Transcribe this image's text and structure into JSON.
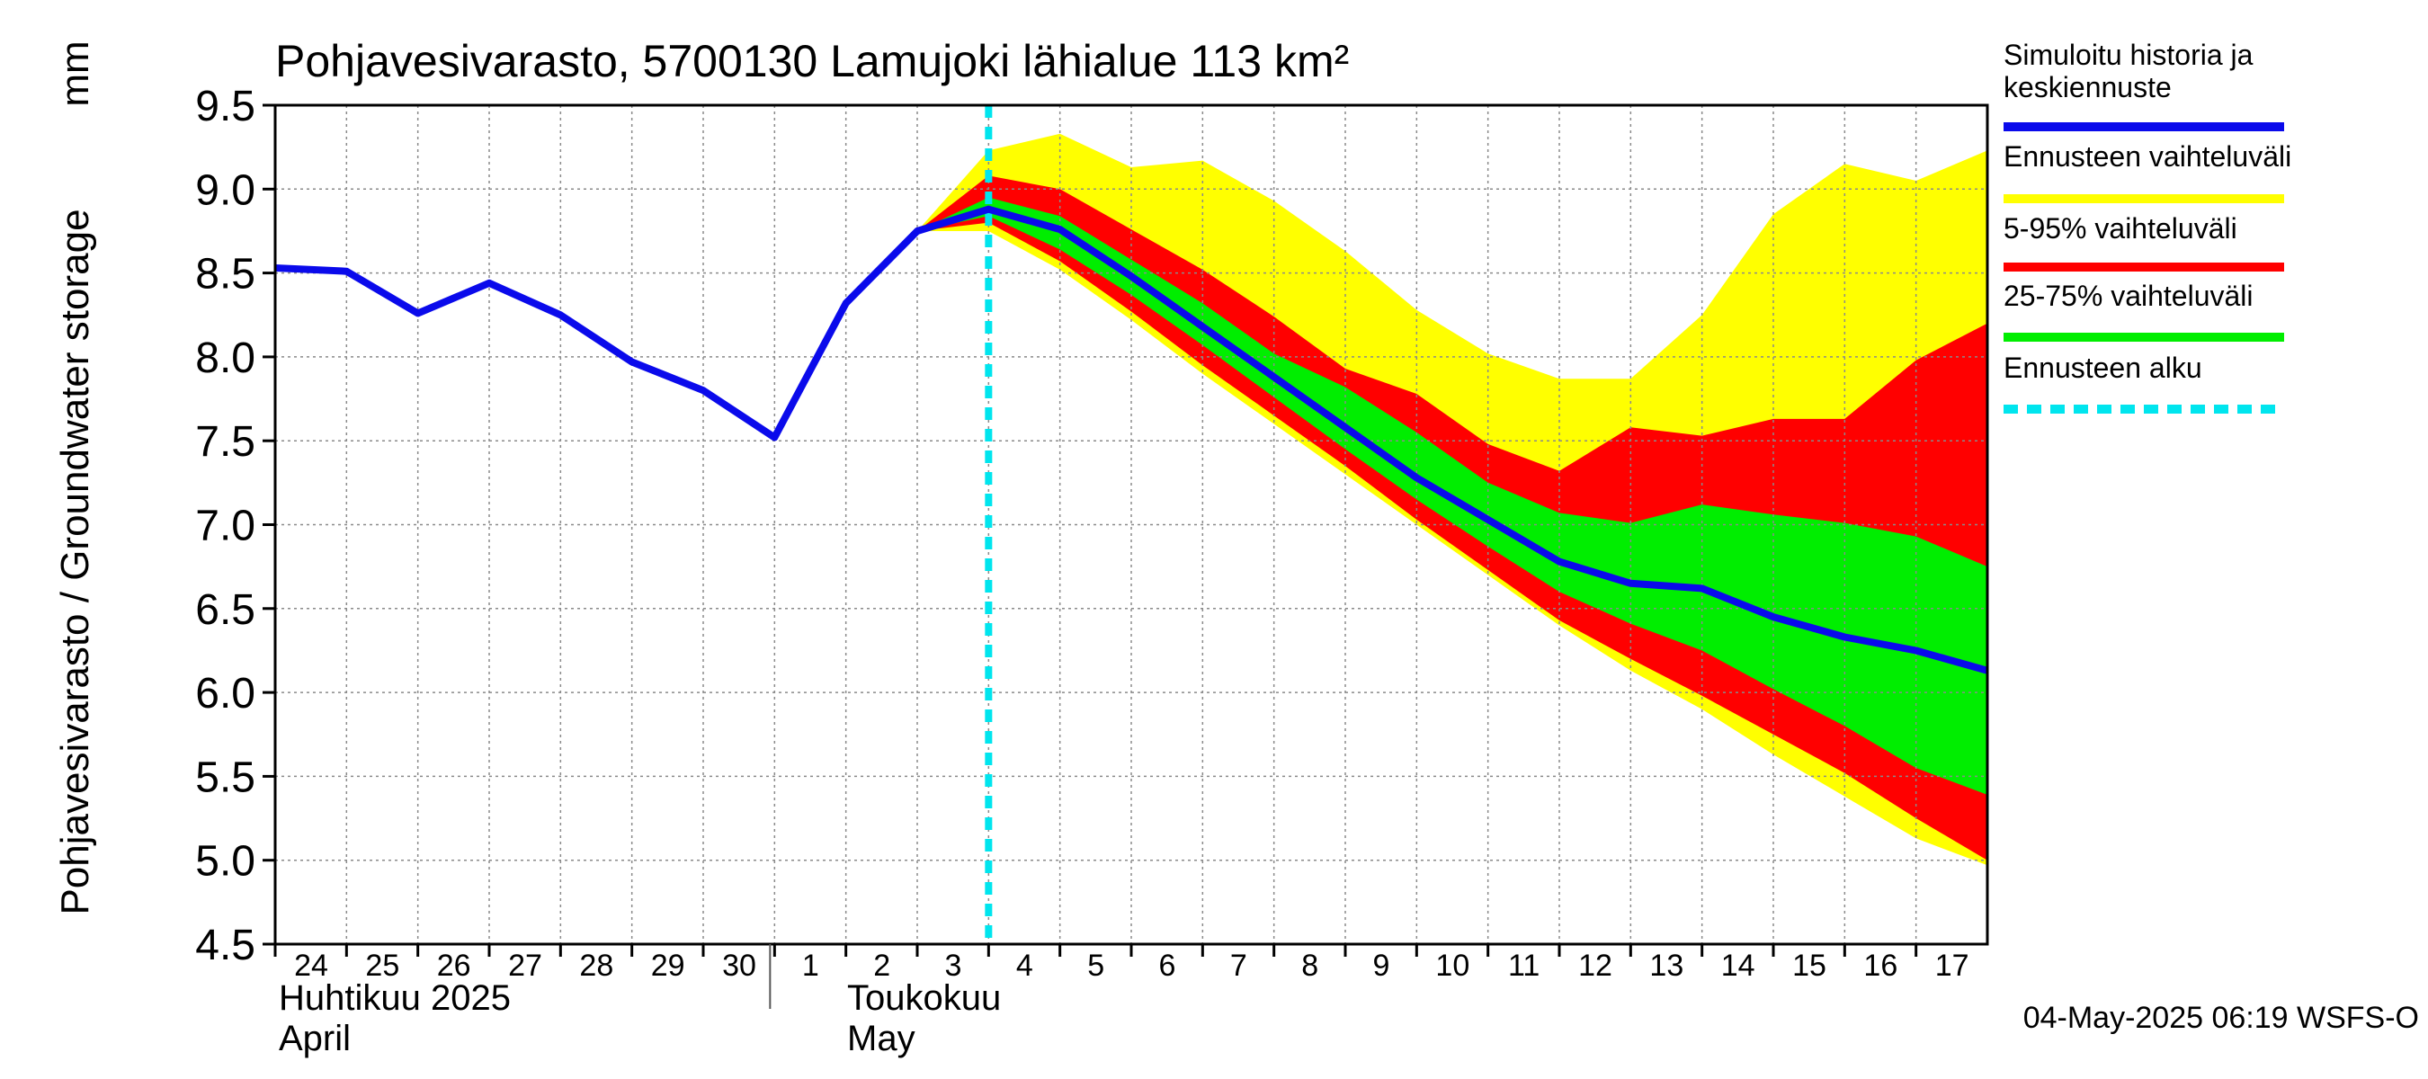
{
  "chart_data": {
    "type": "area",
    "title": "Pohjavesivarasto, 5700130 Lamujoki lähialue 113 km²",
    "ylabel": "Pohjavesivarasto / Groundwater storage",
    "yunit": "mm",
    "ylim": [
      4.5,
      9.5
    ],
    "yticks": [
      "4.5",
      "5.0",
      "5.5",
      "6.0",
      "6.5",
      "7.0",
      "7.5",
      "8.0",
      "8.5",
      "9.0",
      "9.5"
    ],
    "xlim": [
      0,
      24.0
    ],
    "xtick_labels": [
      "24",
      "25",
      "26",
      "27",
      "28",
      "29",
      "30",
      "1",
      "2",
      "3",
      "4",
      "5",
      "6",
      "7",
      "8",
      "9",
      "10",
      "11",
      "12",
      "13",
      "14",
      "15",
      "16",
      "17"
    ],
    "month_labels": {
      "april_fi": "Huhtikuu  2025",
      "april_en": "April",
      "may_fi": "Toukokuu",
      "may_en": "May"
    },
    "grid": true,
    "legend_position": "right",
    "forecast_start": 10.0,
    "history": {
      "x": [
        0,
        1,
        2,
        3,
        4,
        5,
        6,
        7,
        8,
        9,
        10
      ],
      "y": [
        8.53,
        8.51,
        8.26,
        8.44,
        8.25,
        7.97,
        7.8,
        7.52,
        8.32,
        8.75,
        8.88
      ]
    },
    "median": {
      "x": [
        10,
        11,
        12,
        13,
        14,
        15,
        16,
        17,
        18,
        19,
        20,
        21,
        22,
        23,
        24
      ],
      "y": [
        8.88,
        8.76,
        8.48,
        8.18,
        7.88,
        7.58,
        7.28,
        7.03,
        6.78,
        6.65,
        6.62,
        6.45,
        6.33,
        6.25,
        6.13
      ]
    },
    "band_minmax": {
      "x": [
        9,
        10,
        11,
        12,
        13,
        14,
        15,
        16,
        17,
        18,
        19,
        20,
        21,
        22,
        23,
        24
      ],
      "upper": [
        8.75,
        9.23,
        9.33,
        9.13,
        9.17,
        8.93,
        8.63,
        8.28,
        8.02,
        7.87,
        7.87,
        8.25,
        8.85,
        9.15,
        9.05,
        9.23
      ],
      "lower": [
        8.75,
        8.75,
        8.52,
        8.22,
        7.9,
        7.6,
        7.3,
        7.0,
        6.7,
        6.4,
        6.13,
        5.9,
        5.63,
        5.38,
        5.13,
        4.97
      ]
    },
    "band_5_95": {
      "x": [
        9,
        10,
        11,
        12,
        13,
        14,
        15,
        16,
        17,
        18,
        19,
        20,
        21,
        22,
        23,
        24
      ],
      "upper": [
        8.75,
        9.08,
        9.0,
        8.76,
        8.52,
        8.24,
        7.93,
        7.78,
        7.48,
        7.32,
        7.58,
        7.53,
        7.63,
        7.63,
        7.98,
        8.2
      ],
      "lower": [
        8.75,
        8.8,
        8.57,
        8.27,
        7.95,
        7.65,
        7.35,
        7.03,
        6.73,
        6.43,
        6.2,
        5.98,
        5.75,
        5.52,
        5.25,
        5.0
      ]
    },
    "band_25_75": {
      "x": [
        9,
        10,
        11,
        12,
        13,
        14,
        15,
        16,
        17,
        18,
        19,
        20,
        21,
        22,
        23,
        24
      ],
      "upper": [
        8.75,
        8.95,
        8.84,
        8.58,
        8.32,
        8.02,
        7.82,
        7.55,
        7.25,
        7.07,
        7.01,
        7.12,
        7.06,
        7.01,
        6.93,
        6.75
      ],
      "lower": [
        8.75,
        8.84,
        8.64,
        8.37,
        8.07,
        7.76,
        7.45,
        7.15,
        6.87,
        6.6,
        6.41,
        6.25,
        6.02,
        5.8,
        5.55,
        5.39
      ]
    },
    "legend": [
      {
        "label": "Simuloitu historia ja keskiennuste",
        "color": "#0a0aeb",
        "style": "solid"
      },
      {
        "label": "Ennusteen vaihteluväli",
        "color": "#ffff00",
        "style": "solid"
      },
      {
        "label": "5-95% vaihteluväli",
        "color": "#ff0000",
        "style": "solid"
      },
      {
        "label": "25-75% vaihteluväli",
        "color": "#00ee00",
        "style": "solid"
      },
      {
        "label": "Ennusteen alku",
        "color": "#00e5ee",
        "style": "dashed"
      }
    ],
    "colors": {
      "history": "#0a0aeb",
      "minmax": "#ffff00",
      "p5_95": "#ff0000",
      "p25_75": "#00ee00",
      "forecast_start": "#00e5ee",
      "grid": "#8a8a8a"
    }
  },
  "footer": {
    "timestamp": "04-May-2025 06:19 WSFS-O"
  }
}
